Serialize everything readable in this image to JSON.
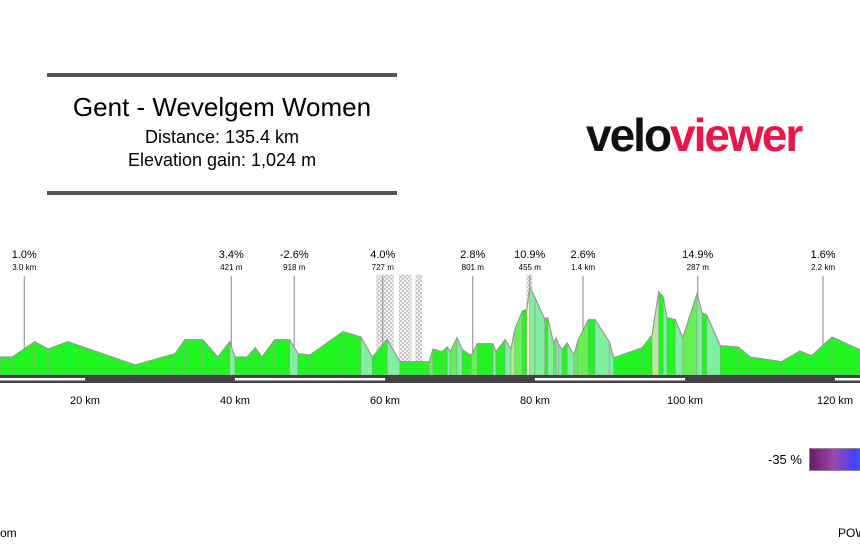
{
  "header": {
    "title": "Gent - Wevelgem Women",
    "distance": "Distance: 135.4 km",
    "elevation_gain": "Elevation gain: 1,024 m"
  },
  "logo": {
    "part1": "velo",
    "part2": "viewer",
    "colors": {
      "velo": "#111111",
      "viewer": "#e8174a"
    }
  },
  "legend": {
    "min_label": "-35 %"
  },
  "footer": {
    "left": "om",
    "right": "POW"
  },
  "chart_data": {
    "type": "area",
    "title": "",
    "xlabel": "",
    "ylabel": "",
    "x_unit": "km",
    "y_unit": "m (estimated)",
    "xlim": [
      8.7,
      123.3
    ],
    "x_ticks": [
      {
        "value": 20,
        "label": "20 km"
      },
      {
        "value": 40,
        "label": "40 km"
      },
      {
        "value": 60,
        "label": "60 km"
      },
      {
        "value": 80,
        "label": "80 km"
      },
      {
        "value": 100,
        "label": "100 km"
      },
      {
        "value": 120,
        "label": "120 km"
      }
    ],
    "profile": [
      [
        8.7,
        27
      ],
      [
        10.3,
        27
      ],
      [
        13.3,
        50
      ],
      [
        15.1,
        39
      ],
      [
        17.7,
        50
      ],
      [
        26.7,
        15
      ],
      [
        32.0,
        32
      ],
      [
        33.3,
        53
      ],
      [
        35.7,
        53
      ],
      [
        37.7,
        27
      ],
      [
        39.3,
        50
      ],
      [
        40.0,
        27
      ],
      [
        41.6,
        27
      ],
      [
        42.7,
        41
      ],
      [
        43.6,
        27
      ],
      [
        45.3,
        53
      ],
      [
        47.3,
        53
      ],
      [
        48.4,
        32
      ],
      [
        50.0,
        30
      ],
      [
        54.4,
        65
      ],
      [
        56.8,
        57
      ],
      [
        58.3,
        27
      ],
      [
        60.3,
        53
      ],
      [
        62.0,
        20
      ],
      [
        65.9,
        20
      ],
      [
        66.4,
        39
      ],
      [
        67.6,
        35
      ],
      [
        68.3,
        42
      ],
      [
        68.7,
        35
      ],
      [
        69.6,
        56
      ],
      [
        70.3,
        38
      ],
      [
        71.5,
        29
      ],
      [
        72.3,
        47
      ],
      [
        74.4,
        47
      ],
      [
        74.8,
        35
      ],
      [
        76.0,
        53
      ],
      [
        76.8,
        39
      ],
      [
        77.3,
        68
      ],
      [
        78.3,
        96
      ],
      [
        78.9,
        98
      ],
      [
        79.3,
        132
      ],
      [
        80.0,
        116
      ],
      [
        81.3,
        84
      ],
      [
        81.7,
        86
      ],
      [
        82.5,
        47
      ],
      [
        82.8,
        56
      ],
      [
        83.1,
        47
      ],
      [
        83.6,
        38
      ],
      [
        84.3,
        48
      ],
      [
        85.2,
        30
      ],
      [
        85.7,
        51
      ],
      [
        87.1,
        83
      ],
      [
        88.0,
        83
      ],
      [
        89.9,
        50
      ],
      [
        90.5,
        26
      ],
      [
        94.3,
        41
      ],
      [
        95.6,
        60
      ],
      [
        96.5,
        125
      ],
      [
        97.1,
        117
      ],
      [
        97.6,
        86
      ],
      [
        98.7,
        83
      ],
      [
        99.7,
        56
      ],
      [
        101.6,
        122
      ],
      [
        102.3,
        93
      ],
      [
        102.9,
        90
      ],
      [
        104.7,
        44
      ],
      [
        107.1,
        42
      ],
      [
        108.7,
        27
      ],
      [
        112.9,
        20
      ],
      [
        115.3,
        36
      ],
      [
        116.9,
        29
      ],
      [
        119.6,
        57
      ],
      [
        123.3,
        38
      ]
    ],
    "climbs": [
      {
        "km": 11.9,
        "grade": "1.0%",
        "length": "3.0 km"
      },
      {
        "km": 39.5,
        "grade": "3.4%",
        "length": "421 m"
      },
      {
        "km": 47.9,
        "grade": "-2.6%",
        "length": "918 m"
      },
      {
        "km": 59.7,
        "grade": "4.0%",
        "length": "727 m"
      },
      {
        "km": 71.7,
        "grade": "2.8%",
        "length": "801 m"
      },
      {
        "km": 79.3,
        "grade": "10.9%",
        "length": "455 m"
      },
      {
        "km": 86.4,
        "grade": "2.6%",
        "length": "1.4 km"
      },
      {
        "km": 101.7,
        "grade": "14.9%",
        "length": "287 m"
      },
      {
        "km": 118.4,
        "grade": "1.6%",
        "length": "2.2 km"
      }
    ],
    "cobbled_sectors": [
      [
        58.9,
        61.1
      ],
      [
        61.9,
        63.5
      ],
      [
        64.1,
        64.9
      ],
      [
        78.9,
        79.6
      ]
    ],
    "distance_bands_white": [
      [
        0,
        20
      ],
      [
        40,
        60
      ],
      [
        80,
        100
      ],
      [
        120,
        140
      ]
    ],
    "grade_colors": {
      "descent_steep": "#b8f5ee",
      "descent": "#80f0a0",
      "flat": "#22f522",
      "gentle": "#66f055",
      "moderate": "#b0f090",
      "hard": "#eef5b0",
      "steep": "#f5e050",
      "very_steep": "#f59030"
    },
    "grid": false
  }
}
